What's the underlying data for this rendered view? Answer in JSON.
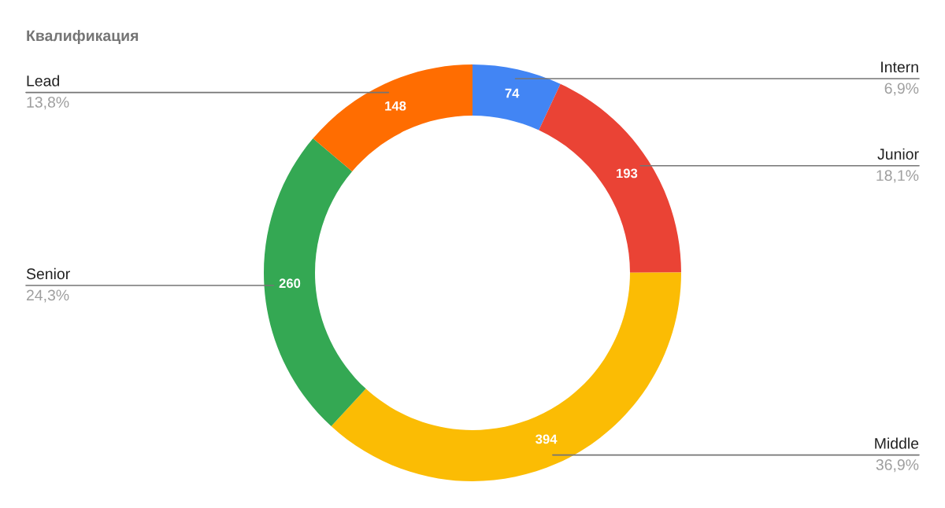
{
  "chart_data": {
    "type": "donut",
    "title": "Квалификация",
    "categories": [
      "Intern",
      "Junior",
      "Middle",
      "Senior",
      "Lead"
    ],
    "values": [
      74,
      193,
      394,
      260,
      148
    ],
    "colors": [
      "#4285f4",
      "#ea4335",
      "#fbbc04",
      "#34a853",
      "#ff6d01"
    ],
    "data_labels": true,
    "annotations": [
      "6,9%",
      "18,1%",
      "36,9%",
      "24,3%",
      "13,8%"
    ]
  }
}
